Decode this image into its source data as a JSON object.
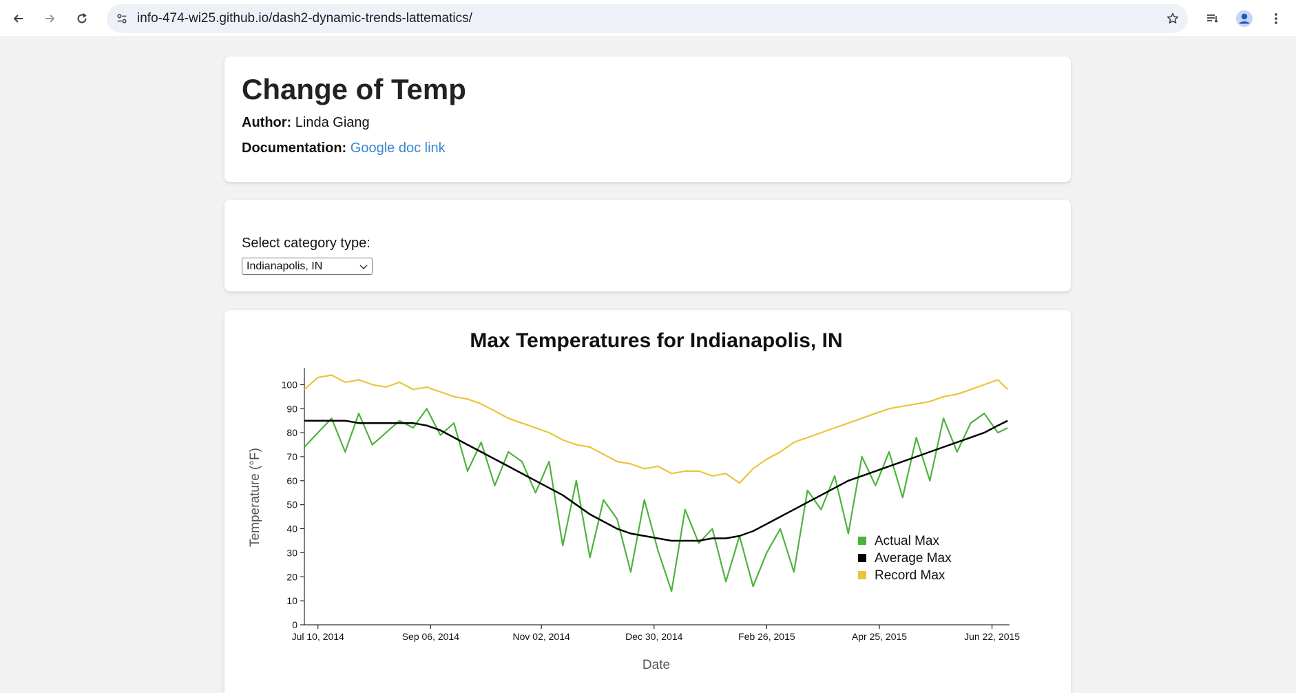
{
  "browser": {
    "url": "info-474-wi25.github.io/dash2-dynamic-trends-lattematics/"
  },
  "header": {
    "title": "Change of Temp",
    "author_label": "Author:",
    "author": "Linda Giang",
    "doc_label": "Documentation:",
    "doc_link_text": "Google doc link"
  },
  "selector": {
    "label": "Select category type:",
    "selected": "Indianapolis, IN"
  },
  "chart_data": {
    "type": "line",
    "title": "Max Temperatures for Indianapolis, IN",
    "xlabel": "Date",
    "ylabel": "Temperature (°F)",
    "ylim": [
      0,
      107
    ],
    "y_ticks": [
      0,
      10,
      20,
      30,
      40,
      50,
      60,
      70,
      80,
      90,
      100
    ],
    "x_range": [
      "2014-07-03",
      "2015-07-01"
    ],
    "x_ticks": [
      {
        "date": "2014-07-10",
        "label": "Jul 10, 2014"
      },
      {
        "date": "2014-09-06",
        "label": "Sep 06, 2014"
      },
      {
        "date": "2014-11-02",
        "label": "Nov 02, 2014"
      },
      {
        "date": "2014-12-30",
        "label": "Dec 30, 2014"
      },
      {
        "date": "2015-02-26",
        "label": "Feb 26, 2015"
      },
      {
        "date": "2015-04-25",
        "label": "Apr 25, 2015"
      },
      {
        "date": "2015-06-22",
        "label": "Jun 22, 2015"
      }
    ],
    "grid": false,
    "legend_position": "bottom-right",
    "x": [
      "2014-07-03",
      "2014-07-10",
      "2014-07-17",
      "2014-07-24",
      "2014-07-31",
      "2014-08-07",
      "2014-08-14",
      "2014-08-21",
      "2014-08-28",
      "2014-09-04",
      "2014-09-11",
      "2014-09-18",
      "2014-09-25",
      "2014-10-02",
      "2014-10-09",
      "2014-10-16",
      "2014-10-23",
      "2014-10-30",
      "2014-11-06",
      "2014-11-13",
      "2014-11-20",
      "2014-11-27",
      "2014-12-04",
      "2014-12-11",
      "2014-12-18",
      "2014-12-25",
      "2015-01-01",
      "2015-01-08",
      "2015-01-15",
      "2015-01-22",
      "2015-01-29",
      "2015-02-05",
      "2015-02-12",
      "2015-02-19",
      "2015-02-26",
      "2015-03-05",
      "2015-03-12",
      "2015-03-19",
      "2015-03-26",
      "2015-04-02",
      "2015-04-09",
      "2015-04-16",
      "2015-04-23",
      "2015-04-30",
      "2015-05-07",
      "2015-05-14",
      "2015-05-21",
      "2015-05-28",
      "2015-06-04",
      "2015-06-11",
      "2015-06-18",
      "2015-06-25",
      "2015-06-30"
    ],
    "series": [
      {
        "name": "Actual Max",
        "color": "#4db33d",
        "values": [
          74,
          80,
          86,
          72,
          88,
          75,
          80,
          85,
          82,
          90,
          79,
          84,
          64,
          76,
          58,
          72,
          68,
          55,
          68,
          33,
          60,
          28,
          52,
          44,
          22,
          52,
          31,
          14,
          48,
          34,
          40,
          18,
          37,
          16,
          30,
          40,
          22,
          56,
          48,
          62,
          38,
          70,
          58,
          72,
          53,
          78,
          60,
          86,
          72,
          84,
          88,
          80,
          82
        ]
      },
      {
        "name": "Average Max",
        "color": "#000000",
        "values": [
          85,
          85,
          85,
          85,
          84,
          84,
          84,
          84,
          84,
          83,
          81,
          78,
          75,
          72,
          69,
          66,
          63,
          60,
          57,
          54,
          50,
          46,
          43,
          40,
          38,
          37,
          36,
          35,
          35,
          35,
          36,
          36,
          37,
          39,
          42,
          45,
          48,
          51,
          54,
          57,
          60,
          62,
          64,
          66,
          68,
          70,
          72,
          74,
          76,
          78,
          80,
          83,
          85
        ]
      },
      {
        "name": "Record Max",
        "color": "#e8c53a",
        "values": [
          98,
          103,
          104,
          101,
          102,
          100,
          99,
          101,
          98,
          99,
          97,
          95,
          94,
          92,
          89,
          86,
          84,
          82,
          80,
          77,
          75,
          74,
          71,
          68,
          67,
          65,
          66,
          63,
          64,
          64,
          62,
          63,
          59,
          65,
          69,
          72,
          76,
          78,
          80,
          82,
          84,
          86,
          88,
          90,
          91,
          92,
          93,
          95,
          96,
          98,
          100,
          102,
          98
        ]
      }
    ]
  }
}
